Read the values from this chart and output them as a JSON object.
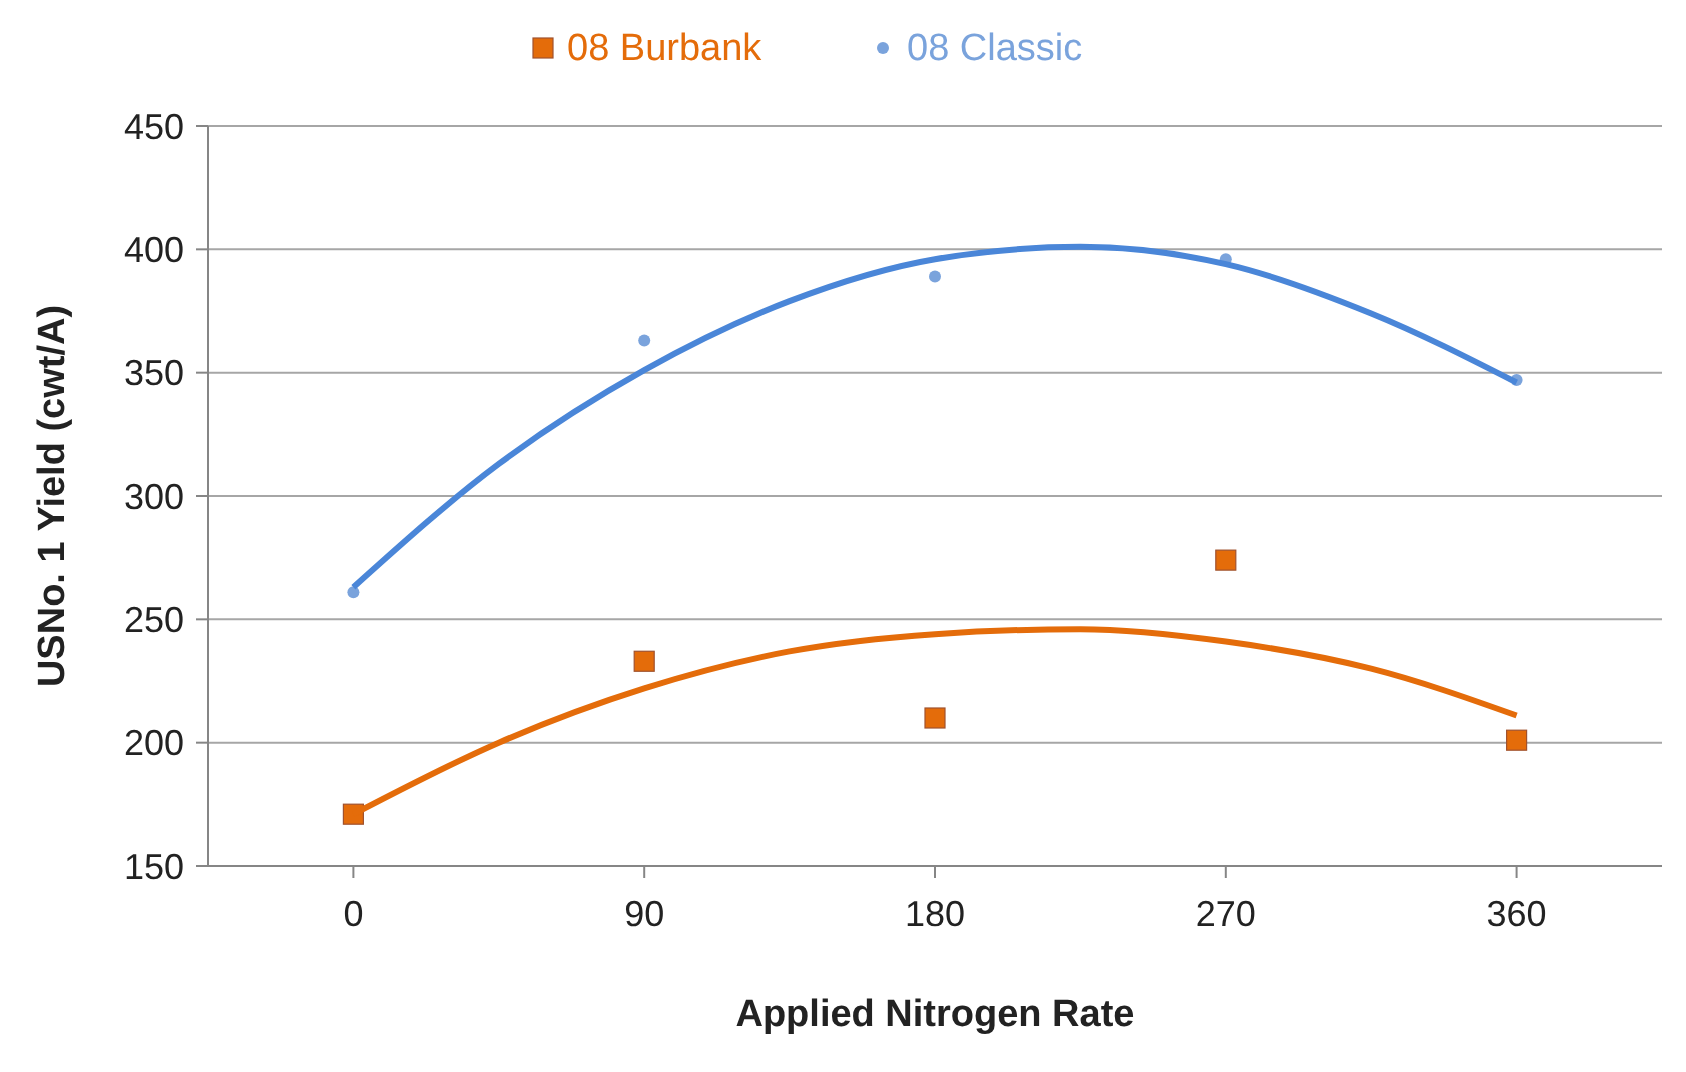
{
  "chart_data": {
    "type": "scatter",
    "xlabel": "Applied Nitrogen Rate",
    "ylabel": "USNo. 1 Yield (cwt/A)",
    "xlim": [
      -45,
      405
    ],
    "xticks": [
      0,
      90,
      180,
      270,
      360
    ],
    "ylim": [
      150,
      450
    ],
    "yticks": [
      150,
      200,
      250,
      300,
      350,
      400,
      450
    ],
    "grid": "y",
    "legend": "top",
    "series": [
      {
        "name": "08 Burbank",
        "color": "#e46c0a",
        "marker": "square",
        "x": [
          0,
          90,
          180,
          270,
          360
        ],
        "values": [
          171,
          233,
          210,
          274,
          201
        ]
      },
      {
        "name": "08 Classic",
        "color": "#7aa3dc",
        "marker": "circle",
        "x": [
          0,
          90,
          180,
          270,
          360
        ],
        "values": [
          261,
          363,
          389,
          396,
          347
        ]
      },
      {
        "type": "line",
        "color": "#e46c0a",
        "x": [
          0,
          45,
          90,
          135,
          180,
          225,
          270,
          315,
          360
        ],
        "values": [
          171,
          200,
          222,
          237,
          244,
          246,
          241,
          230,
          211
        ]
      },
      {
        "type": "line",
        "color": "#4a86d8",
        "x": [
          0,
          45,
          90,
          135,
          180,
          225,
          270,
          315,
          360
        ],
        "values": [
          263,
          313,
          351,
          379,
          396,
          401,
          394,
          374,
          346
        ]
      }
    ]
  }
}
